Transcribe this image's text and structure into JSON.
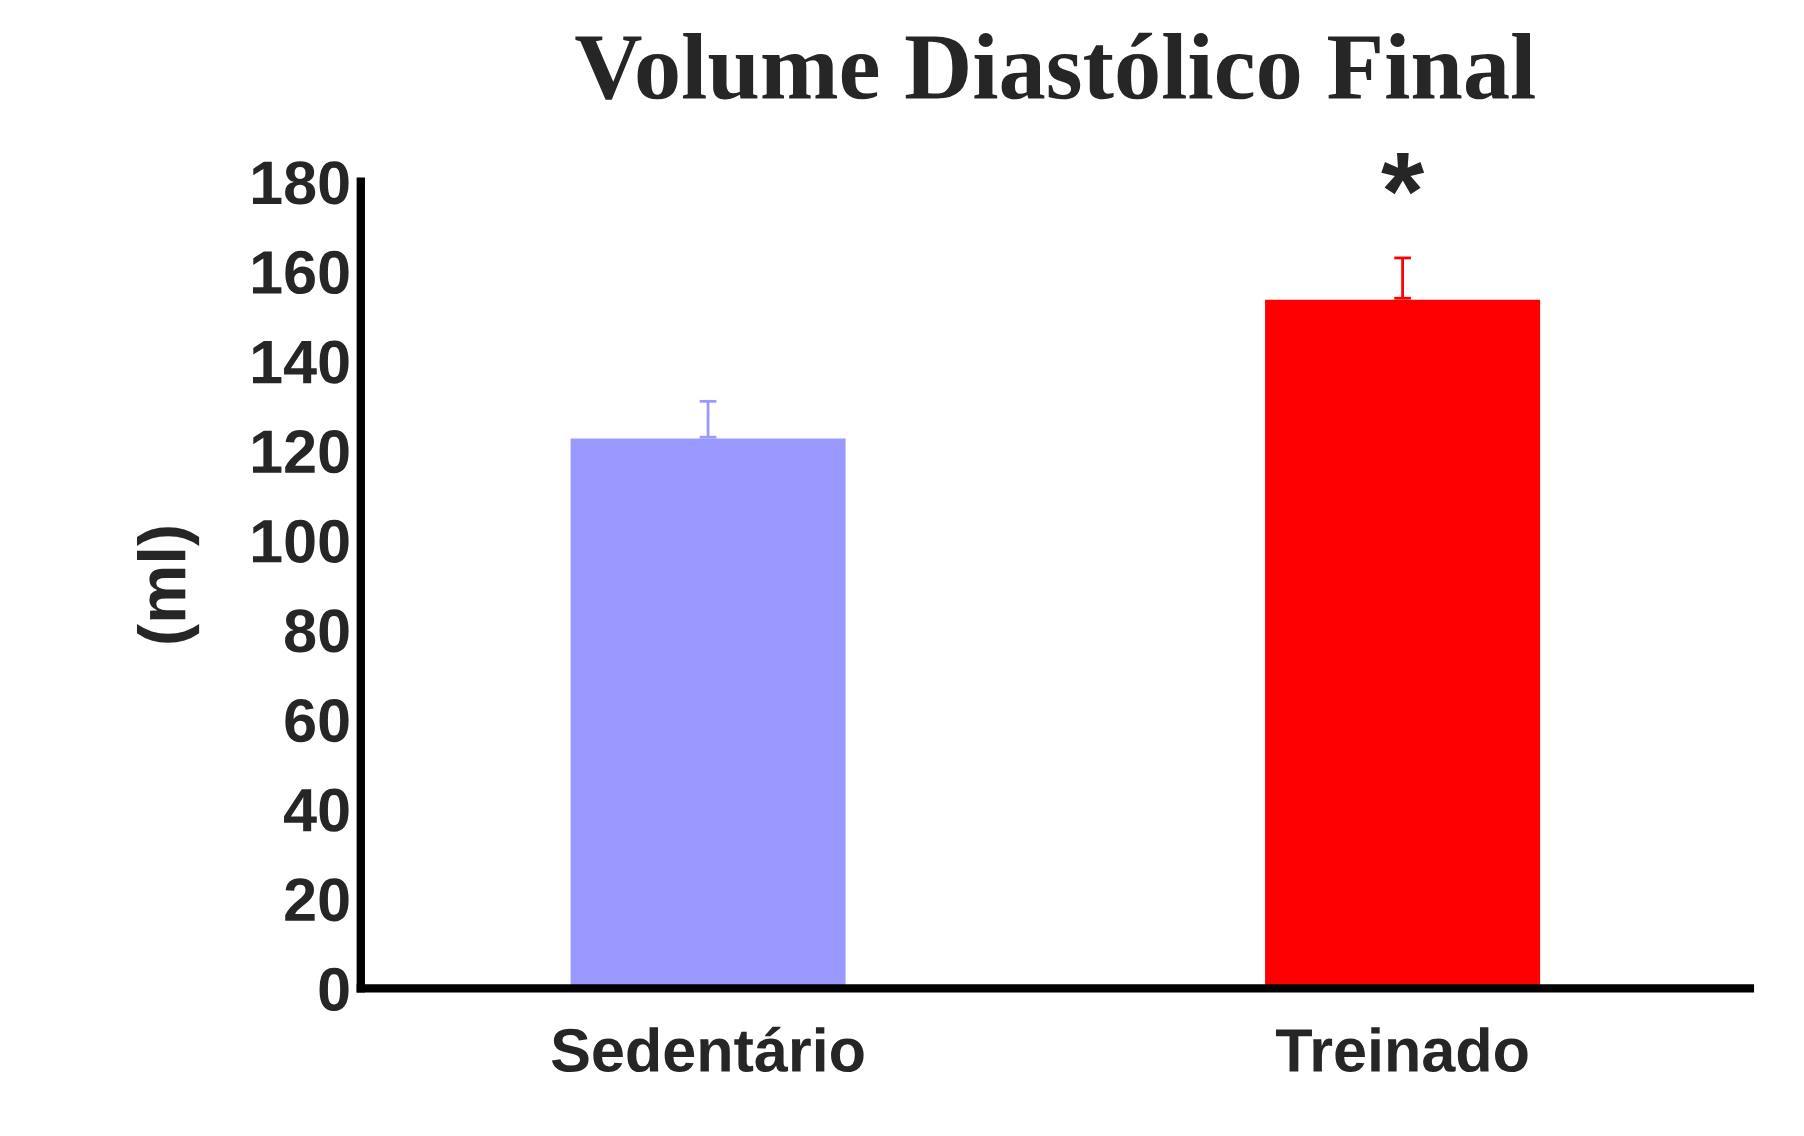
{
  "chart_data": {
    "type": "bar",
    "title": "Volume Diastólico Final",
    "ylabel": "(ml)",
    "categories": [
      "Sedentário",
      "Treinado"
    ],
    "values": [
      123,
      154
    ],
    "colors": [
      "#9999ff",
      "#ff0000"
    ],
    "errors": [
      [
        123,
        131
      ],
      [
        154,
        163
      ]
    ],
    "ylim": [
      0,
      180
    ],
    "yticks": [
      0,
      20,
      40,
      60,
      80,
      100,
      120,
      140,
      160,
      180
    ],
    "annotations": [
      "*"
    ],
    "grid": false,
    "legend": false
  }
}
